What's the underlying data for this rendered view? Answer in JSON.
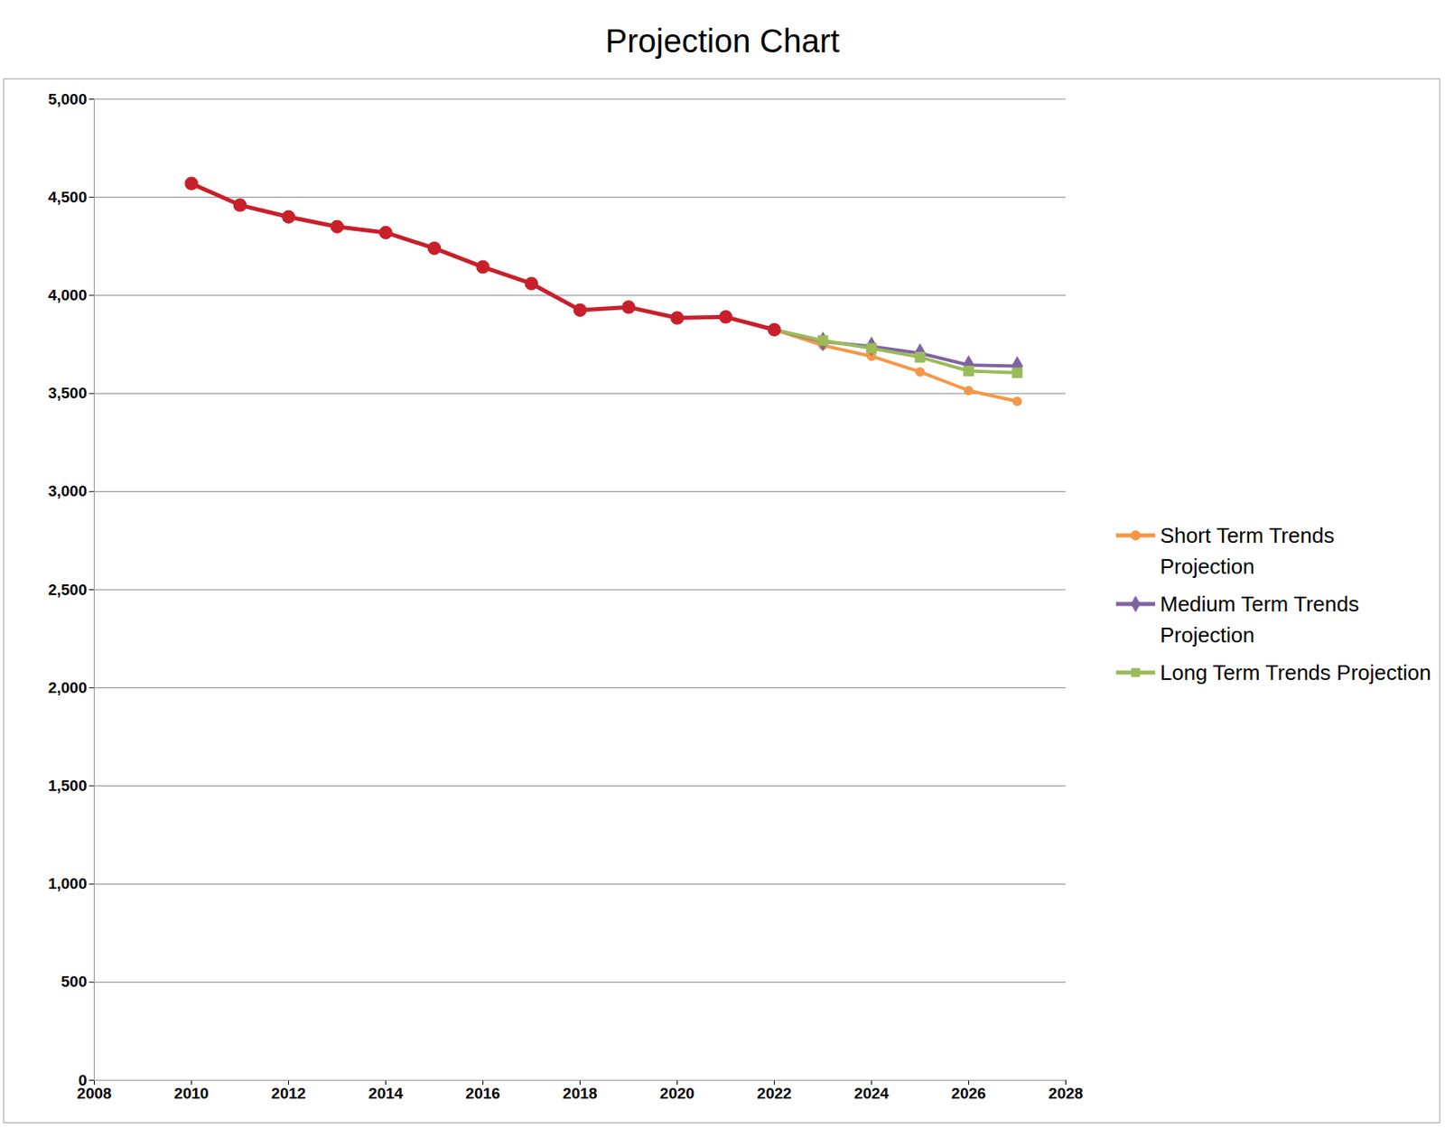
{
  "chart_data": {
    "type": "line",
    "title": "Projection Chart",
    "x": [
      2010,
      2011,
      2012,
      2013,
      2014,
      2015,
      2016,
      2017,
      2018,
      2019,
      2020,
      2021,
      2022,
      2023,
      2024,
      2025,
      2026,
      2027
    ],
    "series": [
      {
        "color": "#c8202a",
        "marker": "circle",
        "values": [
          4570,
          4460,
          4400,
          4350,
          4320,
          4240,
          4145,
          4060,
          3925,
          3940,
          3885,
          3890,
          3825,
          null,
          null,
          null,
          null,
          null
        ]
      },
      {
        "name": "Short Term Trends Projection",
        "color": "#f79646",
        "marker": "circle",
        "values": [
          null,
          null,
          null,
          null,
          null,
          null,
          null,
          null,
          null,
          null,
          null,
          null,
          3825,
          3745,
          3690,
          3610,
          3515,
          3460
        ]
      },
      {
        "name": "Medium Term Trends Projection",
        "color": "#8064a2",
        "marker": "diamond",
        "values": [
          null,
          null,
          null,
          null,
          null,
          null,
          null,
          null,
          null,
          null,
          null,
          null,
          3825,
          3765,
          3740,
          3705,
          3645,
          3640
        ]
      },
      {
        "name": "Long Term Trends Projection",
        "color": "#9bbb59",
        "marker": "square",
        "values": [
          null,
          null,
          null,
          null,
          null,
          null,
          null,
          null,
          null,
          null,
          null,
          null,
          3825,
          3770,
          3730,
          3685,
          3615,
          3605
        ]
      }
    ],
    "xlim": [
      2008,
      2028
    ],
    "xticks": [
      2008,
      2010,
      2012,
      2014,
      2016,
      2018,
      2020,
      2022,
      2024,
      2026,
      2028
    ],
    "ylim": [
      0,
      5000
    ],
    "yticks": [
      0,
      500,
      {
        "value": 1000,
        "label": "1,000"
      },
      {
        "value": 1500,
        "label": "1,500"
      },
      {
        "value": 2000,
        "label": "2,000"
      },
      {
        "value": 2500,
        "label": "2,500"
      },
      {
        "value": 3000,
        "label": "3,000"
      },
      {
        "value": 3500,
        "label": "3,500"
      },
      {
        "value": 4000,
        "label": "4,000"
      },
      {
        "value": 4500,
        "label": "4,500"
      },
      {
        "value": 5000,
        "label": "5,000"
      }
    ],
    "grid": true,
    "legend": "right"
  }
}
